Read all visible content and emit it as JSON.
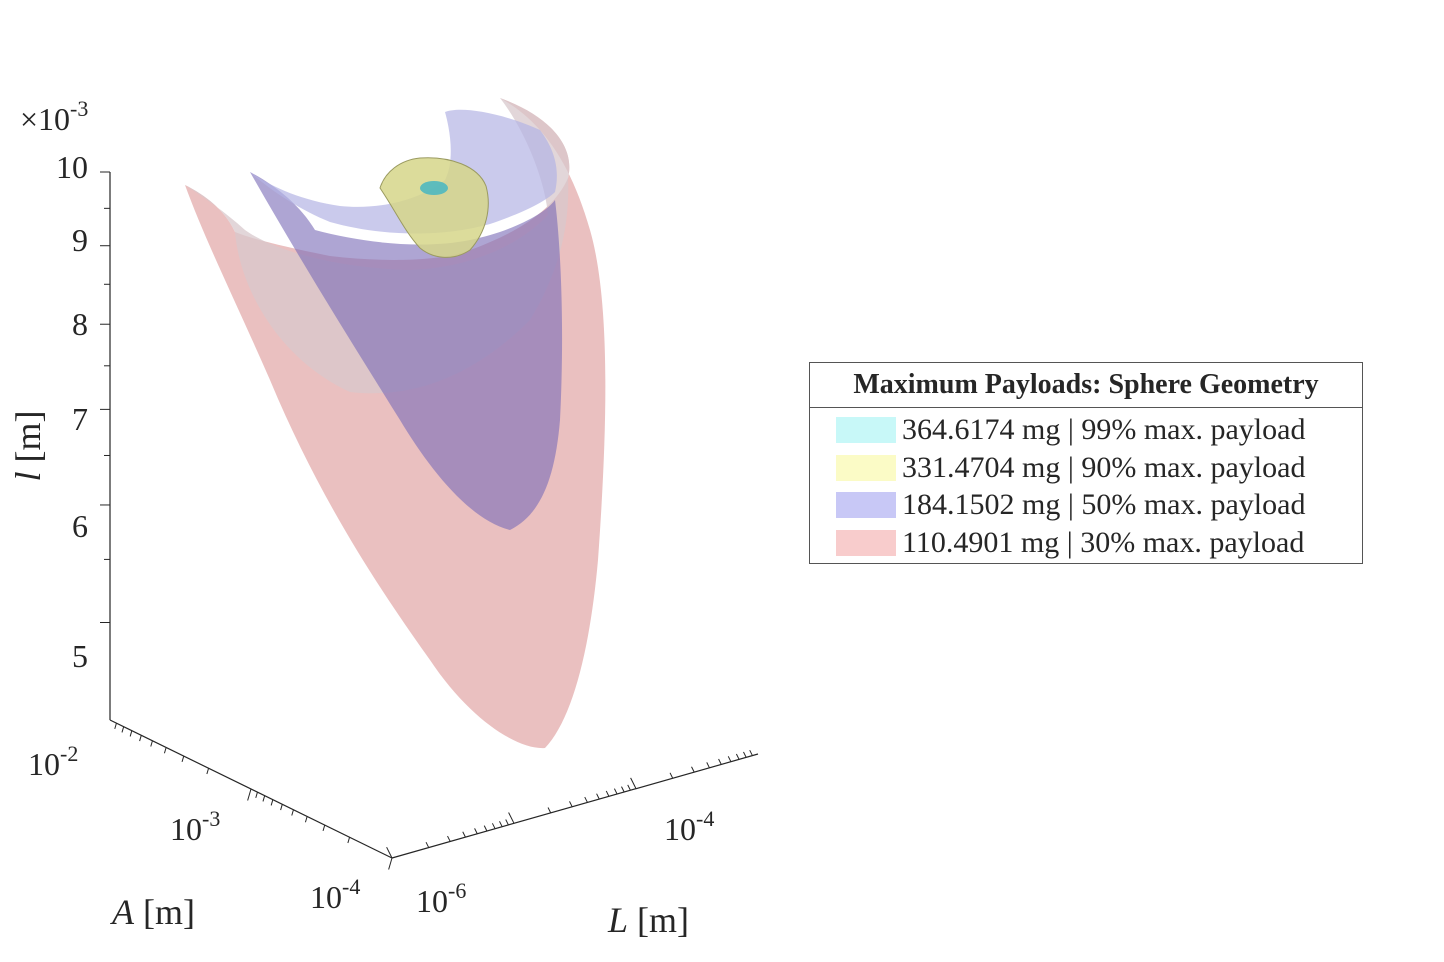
{
  "chart_data": {
    "type": "surface3d",
    "title": "",
    "xlabel": "L [m]",
    "ylabel": "A [m]",
    "zlabel": "l [m]",
    "x_scale": "log",
    "y_scale": "log",
    "xlim": [
      1e-06,
      0.001
    ],
    "ylim": [
      0.0001,
      0.01
    ],
    "zlim": [
      0.0045,
      0.01
    ],
    "z_multiplier": "×10-3",
    "x_ticks": [
      {
        "base": "10",
        "exp": "-6"
      },
      {
        "base": "10",
        "exp": "-4"
      }
    ],
    "y_ticks": [
      {
        "base": "10",
        "exp": "-2"
      },
      {
        "base": "10",
        "exp": "-3"
      },
      {
        "base": "10",
        "exp": "-4"
      }
    ],
    "z_ticks": [
      "10",
      "9",
      "8",
      "7",
      "6",
      "5"
    ],
    "grid": false,
    "legend": {
      "title": "Maximum Payloads: Sphere Geometry",
      "placement": "right",
      "entries": [
        {
          "label": "364.6174 mg | 99% max. payload",
          "color": "#c8f8f8"
        },
        {
          "label": "331.4704 mg | 90% max. payload",
          "color": "#fbfbc6"
        },
        {
          "label": "184.1502 mg | 50% max. payload",
          "color": "#c8c8f6"
        },
        {
          "label": "110.4901 mg | 30% max. payload",
          "color": "#f8cccc"
        }
      ]
    },
    "series": [
      {
        "payload_mg": 364.6174,
        "percent_max": 99,
        "color": "#7fd6d6"
      },
      {
        "payload_mg": 331.4704,
        "percent_max": 90,
        "color": "#e6e69a"
      },
      {
        "payload_mg": 184.1502,
        "percent_max": 50,
        "color": "#8a8ad8"
      },
      {
        "payload_mg": 110.4901,
        "percent_max": 30,
        "color": "#dca0a0"
      }
    ]
  }
}
